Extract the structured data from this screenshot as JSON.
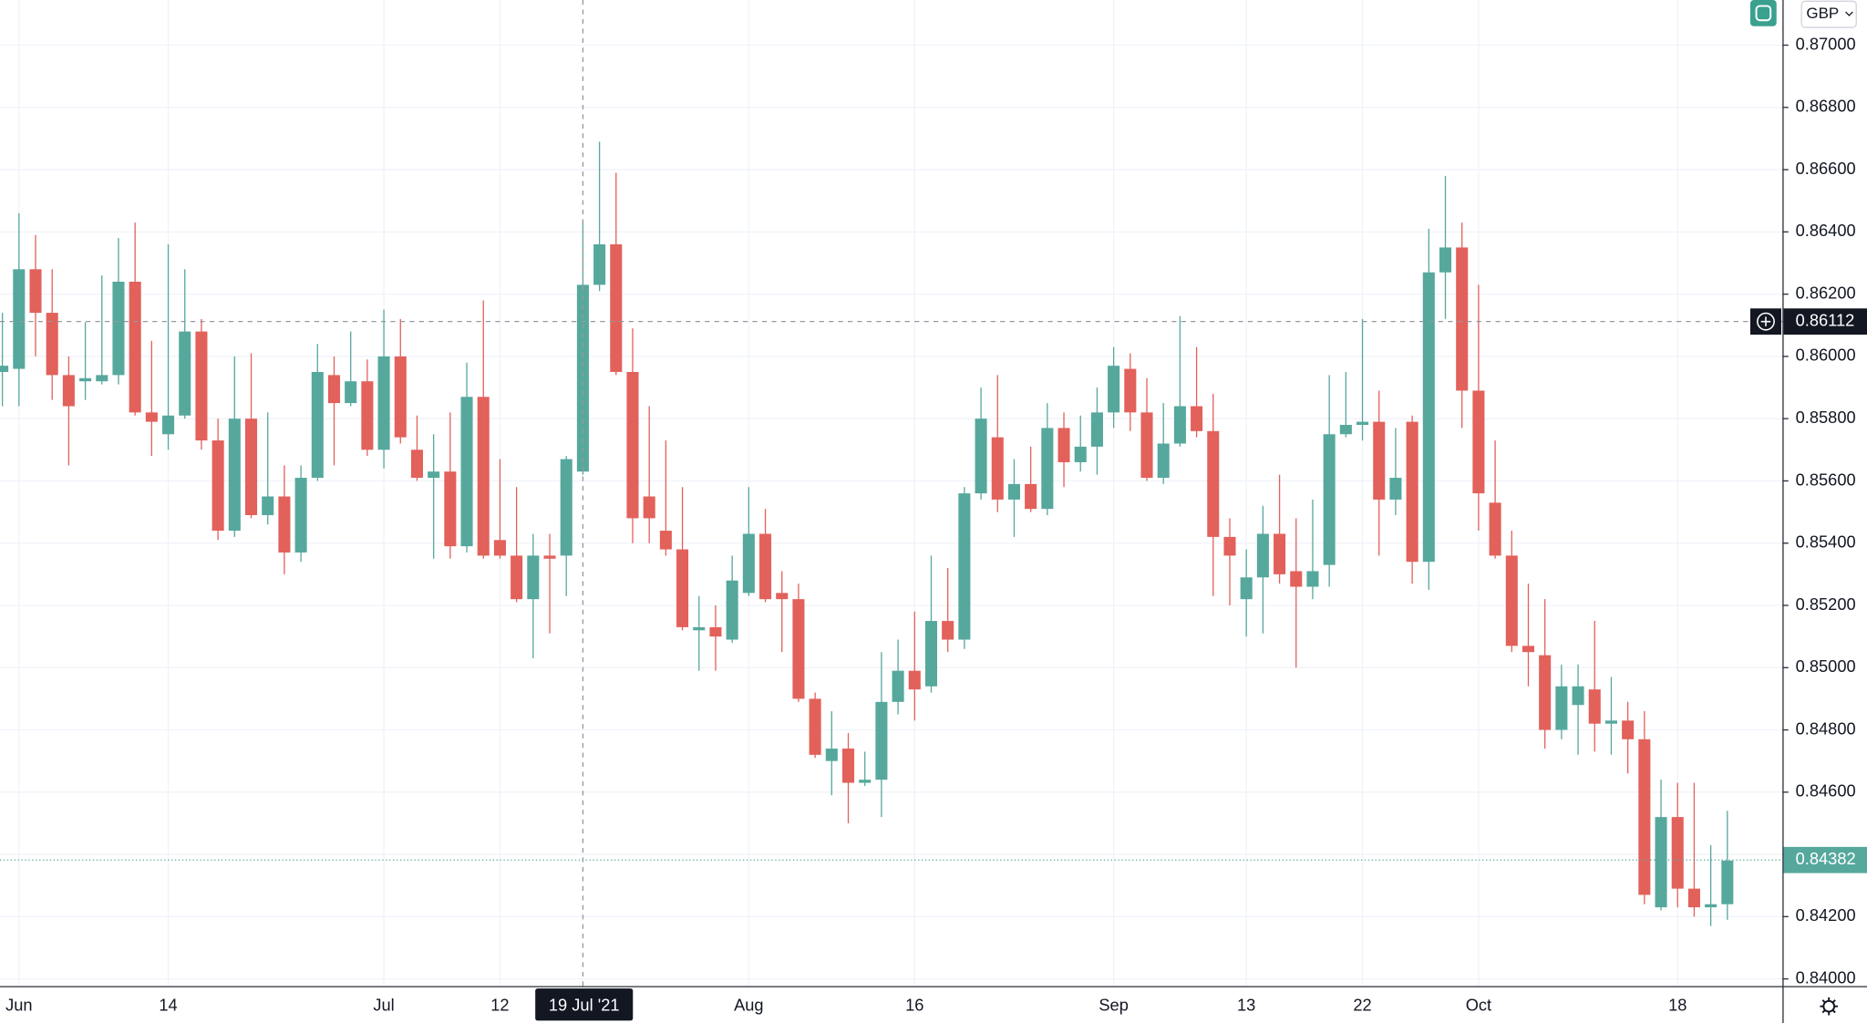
{
  "chart_data": {
    "type": "candlestick",
    "currency": "GBP",
    "categories": [
      null,
      "Jun",
      null,
      null,
      null,
      null,
      null,
      null,
      null,
      null,
      "14",
      null,
      null,
      null,
      null,
      null,
      null,
      null,
      null,
      null,
      null,
      null,
      null,
      "Jul",
      null,
      null,
      null,
      null,
      null,
      null,
      "12",
      null,
      null,
      null,
      null,
      "19 Jul '21",
      null,
      null,
      null,
      null,
      null,
      null,
      null,
      null,
      null,
      "Aug",
      null,
      null,
      null,
      null,
      null,
      null,
      null,
      null,
      null,
      "16",
      null,
      null,
      null,
      null,
      null,
      null,
      null,
      null,
      null,
      null,
      null,
      "Sep",
      null,
      null,
      null,
      null,
      null,
      null,
      null,
      "13",
      null,
      null,
      null,
      null,
      null,
      null,
      "22",
      null,
      null,
      null,
      null,
      null,
      null,
      "Oct",
      null,
      null,
      null,
      null,
      null,
      null,
      null,
      null,
      null,
      null,
      null,
      "18",
      null,
      null,
      null
    ],
    "open": [
      0.8595,
      0.8596,
      0.8628,
      0.8614,
      0.8594,
      0.8592,
      0.8592,
      0.8594,
      0.8624,
      0.8582,
      0.8575,
      0.8581,
      0.8608,
      0.8573,
      0.8544,
      0.858,
      0.8549,
      0.8555,
      0.8537,
      0.8561,
      0.8594,
      0.8585,
      0.8592,
      0.857,
      0.86,
      0.857,
      0.8561,
      0.8563,
      0.8539,
      0.8587,
      0.8541,
      0.8536,
      0.8522,
      0.8536,
      0.8536,
      0.8563,
      0.8623,
      0.8636,
      0.8595,
      0.8555,
      0.8544,
      0.8538,
      0.8512,
      0.8513,
      0.8509,
      0.8524,
      0.8543,
      0.8524,
      0.8522,
      0.849,
      0.847,
      0.8474,
      0.8463,
      0.8464,
      0.8489,
      0.8499,
      0.8494,
      0.8515,
      0.8509,
      0.8556,
      0.8574,
      0.8554,
      0.8559,
      0.8551,
      0.8577,
      0.8566,
      0.8571,
      0.8582,
      0.8596,
      0.8582,
      0.8561,
      0.8572,
      0.8584,
      0.8576,
      0.8542,
      0.8522,
      0.8529,
      0.8543,
      0.8531,
      0.8526,
      0.8533,
      0.8575,
      0.8578,
      0.8579,
      0.8554,
      0.8579,
      0.8534,
      0.8627,
      0.8635,
      0.8589,
      0.8553,
      0.8536,
      0.8507,
      0.8504,
      0.848,
      0.8488,
      0.8493,
      0.8482,
      0.8483,
      0.8477,
      0.8423,
      0.8452,
      0.8429,
      0.8423,
      0.8424
    ],
    "high": [
      0.8614,
      0.8646,
      0.8639,
      0.8628,
      0.86,
      0.8611,
      0.8626,
      0.8638,
      0.8643,
      0.8605,
      0.8636,
      0.8628,
      0.8612,
      0.858,
      0.86,
      0.8601,
      0.8582,
      0.8565,
      0.8565,
      0.8604,
      0.86,
      0.8608,
      0.8599,
      0.8615,
      0.8612,
      0.8581,
      0.8575,
      0.8582,
      0.8598,
      0.8618,
      0.8567,
      0.8558,
      0.8543,
      0.8543,
      0.8568,
      0.8643,
      0.8669,
      0.8659,
      0.8609,
      0.8584,
      0.8573,
      0.8558,
      0.8523,
      0.852,
      0.8536,
      0.8558,
      0.8551,
      0.8531,
      0.8527,
      0.8492,
      0.8486,
      0.8479,
      0.8473,
      0.8505,
      0.8509,
      0.8518,
      0.8536,
      0.8532,
      0.8558,
      0.859,
      0.8594,
      0.8567,
      0.8571,
      0.8585,
      0.8582,
      0.8581,
      0.859,
      0.8603,
      0.8601,
      0.8593,
      0.8585,
      0.8613,
      0.8603,
      0.8588,
      0.8548,
      0.8538,
      0.8552,
      0.8562,
      0.8548,
      0.8554,
      0.8594,
      0.8595,
      0.8612,
      0.8589,
      0.8577,
      0.8581,
      0.8641,
      0.8658,
      0.8643,
      0.8623,
      0.8573,
      0.8544,
      0.8527,
      0.8522,
      0.8501,
      0.8501,
      0.8515,
      0.8497,
      0.8489,
      0.8486,
      0.8464,
      0.8463,
      0.8463,
      0.8443,
      0.8454
    ],
    "low": [
      0.8584,
      0.8584,
      0.86,
      0.8586,
      0.8565,
      0.8586,
      0.8591,
      0.8591,
      0.8581,
      0.8568,
      0.857,
      0.858,
      0.857,
      0.8541,
      0.8542,
      0.8548,
      0.8546,
      0.853,
      0.8534,
      0.856,
      0.8565,
      0.8584,
      0.8568,
      0.8564,
      0.8572,
      0.856,
      0.8535,
      0.8535,
      0.8537,
      0.8535,
      0.8535,
      0.8521,
      0.8503,
      0.8511,
      0.8523,
      0.8562,
      0.8621,
      0.8594,
      0.854,
      0.854,
      0.8536,
      0.8512,
      0.8499,
      0.8499,
      0.8508,
      0.8523,
      0.8521,
      0.8505,
      0.8489,
      0.8471,
      0.8459,
      0.845,
      0.8462,
      0.8452,
      0.8485,
      0.8483,
      0.8492,
      0.8505,
      0.8506,
      0.8554,
      0.855,
      0.8542,
      0.855,
      0.8549,
      0.8558,
      0.8563,
      0.8562,
      0.8577,
      0.8576,
      0.856,
      0.8559,
      0.8571,
      0.8574,
      0.8523,
      0.852,
      0.851,
      0.8511,
      0.8527,
      0.85,
      0.8522,
      0.8526,
      0.8574,
      0.8573,
      0.8536,
      0.8549,
      0.8527,
      0.8525,
      0.8612,
      0.8577,
      0.8544,
      0.8535,
      0.8505,
      0.8494,
      0.8474,
      0.8477,
      0.8472,
      0.8473,
      0.8472,
      0.8466,
      0.8424,
      0.8422,
      0.8423,
      0.842,
      0.8417,
      0.8419
    ],
    "close": [
      0.8597,
      0.8628,
      0.8614,
      0.8594,
      0.8584,
      0.8593,
      0.8594,
      0.8624,
      0.8582,
      0.8579,
      0.8581,
      0.8608,
      0.8573,
      0.8544,
      0.858,
      0.8549,
      0.8555,
      0.8537,
      0.8561,
      0.8595,
      0.8585,
      0.8592,
      0.857,
      0.86,
      0.8574,
      0.8561,
      0.8563,
      0.8539,
      0.8587,
      0.8536,
      0.8536,
      0.8522,
      0.8536,
      0.8535,
      0.8567,
      0.8623,
      0.8636,
      0.8595,
      0.8548,
      0.8548,
      0.8538,
      0.8513,
      0.8513,
      0.851,
      0.8528,
      0.8543,
      0.8522,
      0.8522,
      0.849,
      0.8472,
      0.8474,
      0.8463,
      0.8464,
      0.8489,
      0.8499,
      0.8493,
      0.8515,
      0.8509,
      0.8556,
      0.858,
      0.8554,
      0.8559,
      0.8551,
      0.8577,
      0.8566,
      0.8571,
      0.8582,
      0.8597,
      0.8582,
      0.8561,
      0.8572,
      0.8584,
      0.8576,
      0.8542,
      0.8536,
      0.8529,
      0.8543,
      0.853,
      0.8526,
      0.8531,
      0.8575,
      0.8578,
      0.8579,
      0.8554,
      0.8561,
      0.8534,
      0.8627,
      0.8635,
      0.8589,
      0.8556,
      0.8536,
      0.8507,
      0.8505,
      0.848,
      0.8494,
      0.8494,
      0.8482,
      0.8483,
      0.8477,
      0.8427,
      0.8452,
      0.8429,
      0.8423,
      0.8424,
      0.8438
    ],
    "up_color": "#56a89d",
    "down_color": "#e2615b",
    "ylim": [
      0.83977,
      0.87145
    ],
    "yticks": [
      {
        "value": 0.84,
        "label": "0.84000"
      },
      {
        "value": 0.842,
        "label": "0.84200"
      },
      {
        "value": 0.844,
        "label": "0.84400"
      },
      {
        "value": 0.846,
        "label": "0.84600"
      },
      {
        "value": 0.848,
        "label": "0.84800"
      },
      {
        "value": 0.85,
        "label": "0.85000"
      },
      {
        "value": 0.852,
        "label": "0.85200"
      },
      {
        "value": 0.854,
        "label": "0.85400"
      },
      {
        "value": 0.856,
        "label": "0.85600"
      },
      {
        "value": 0.858,
        "label": "0.85800"
      },
      {
        "value": 0.86,
        "label": "0.86000"
      },
      {
        "value": 0.862,
        "label": "0.86200"
      },
      {
        "value": 0.864,
        "label": "0.86400"
      },
      {
        "value": 0.866,
        "label": "0.86600"
      },
      {
        "value": 0.868,
        "label": "0.86800"
      },
      {
        "value": 0.87,
        "label": "0.87000"
      }
    ],
    "grid": true,
    "crosshair": {
      "category_index": 35,
      "y": 0.86112
    },
    "last_price": 0.84382
  }
}
